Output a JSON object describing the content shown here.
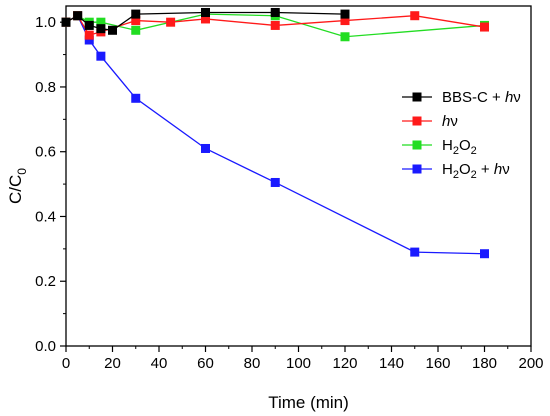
{
  "chart_data": {
    "type": "line",
    "xlabel": "Time (min)",
    "ylabel": "C/C",
    "ylabel_sub": "0",
    "xlim": [
      0,
      200
    ],
    "ylim": [
      0.0,
      1.05
    ],
    "xticks": [
      0,
      20,
      40,
      60,
      80,
      100,
      120,
      140,
      160,
      180,
      200
    ],
    "yticks": [
      0.0,
      0.2,
      0.4,
      0.6,
      0.8,
      1.0
    ],
    "xtick_labels": [
      "0",
      "20",
      "40",
      "60",
      "80",
      "100",
      "120",
      "140",
      "160",
      "180",
      "200"
    ],
    "ytick_labels": [
      "0.0",
      "0.2",
      "0.4",
      "0.6",
      "0.8",
      "1.0"
    ],
    "grid": false,
    "legend_position": "right",
    "series": [
      {
        "name": "BBS-C + hν",
        "color": "#000000",
        "x": [
          0,
          5,
          10,
          15,
          20,
          30,
          60,
          90,
          120
        ],
        "y": [
          1.0,
          1.02,
          0.99,
          0.98,
          0.975,
          1.025,
          1.03,
          1.03,
          1.025
        ]
      },
      {
        "name": "hν",
        "color": "#ff1a1a",
        "x": [
          0,
          5,
          10,
          15,
          30,
          45,
          60,
          90,
          120,
          150,
          180
        ],
        "y": [
          1.0,
          1.02,
          0.96,
          0.97,
          1.005,
          1.0,
          1.01,
          0.99,
          1.005,
          1.02,
          0.985
        ]
      },
      {
        "name": "H2O2",
        "color": "#22dd22",
        "x": [
          0,
          5,
          10,
          15,
          30,
          60,
          90,
          120,
          180
        ],
        "y": [
          1.0,
          1.02,
          1.0,
          1.0,
          0.975,
          1.025,
          1.02,
          0.955,
          0.99
        ]
      },
      {
        "name": "H2O2 + hν",
        "color": "#1a1aff",
        "x": [
          0,
          5,
          10,
          15,
          30,
          60,
          90,
          150,
          180
        ],
        "y": [
          1.0,
          1.02,
          0.945,
          0.895,
          0.765,
          0.61,
          0.505,
          0.29,
          0.285
        ]
      }
    ],
    "legend_entries": [
      {
        "main": "BBS-C + ",
        "italic": "h",
        "tail": "ν",
        "color": "#000000"
      },
      {
        "main": "",
        "italic": "h",
        "tail": "ν",
        "color": "#ff1a1a"
      },
      {
        "main": "H",
        "sub1": "2",
        "mid": "O",
        "sub2": "2",
        "color": "#22dd22"
      },
      {
        "main": "H",
        "sub1": "2",
        "mid": "O",
        "sub2": "2",
        "tail2": " + ",
        "italic": "h",
        "tail": "ν",
        "color": "#1a1aff"
      }
    ]
  }
}
